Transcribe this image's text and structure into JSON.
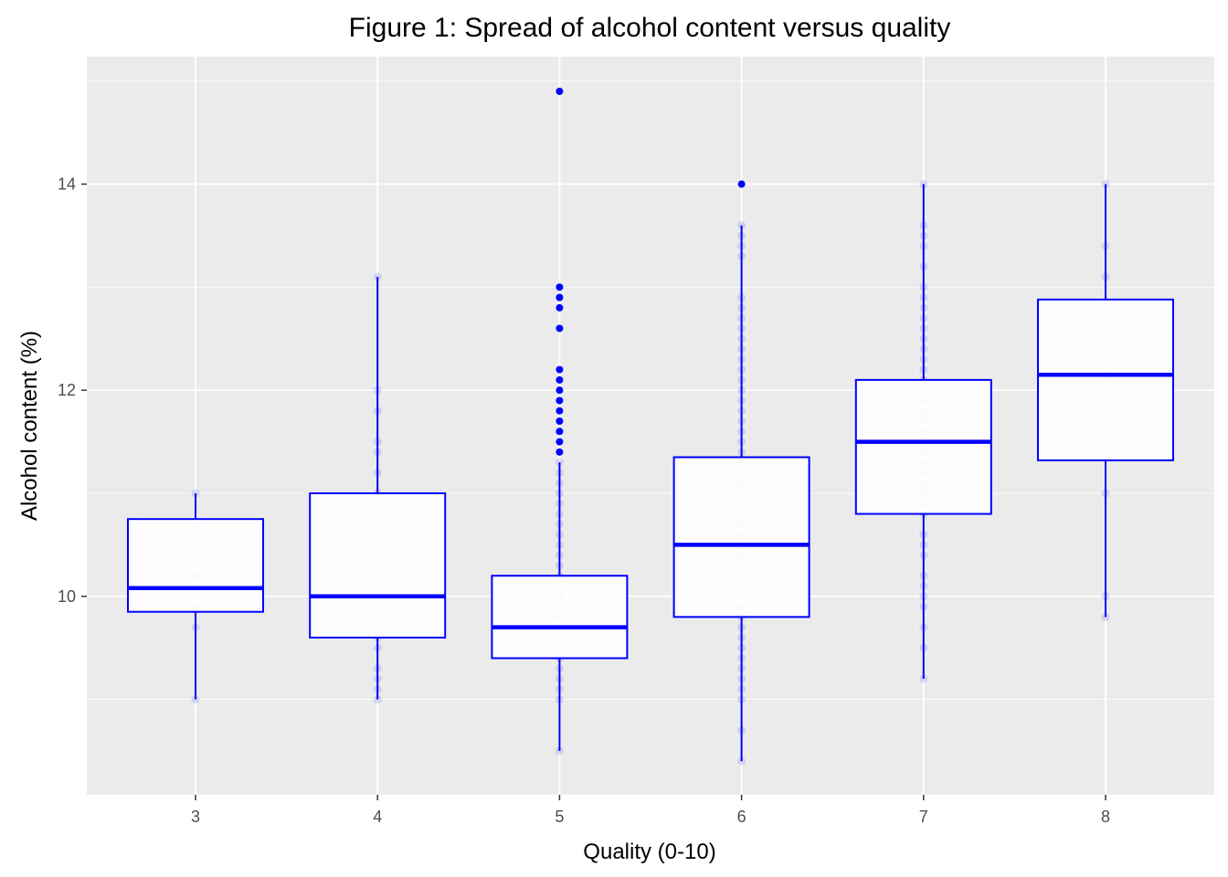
{
  "chart_data": {
    "type": "boxplot",
    "title": "Figure 1: Spread of alcohol content versus quality",
    "xlabel": "Quality (0-10)",
    "ylabel": "Alcohol content (%)",
    "categories": [
      "3",
      "4",
      "5",
      "6",
      "7",
      "8"
    ],
    "y_ticks": [
      10,
      12,
      14
    ],
    "ylim": [
      8.2,
      15.1
    ],
    "grid": true,
    "colors": {
      "panel": "#ebebeb",
      "grid_major": "#ffffff",
      "box": "#0000ff",
      "tick_text": "#4d4d4d"
    },
    "boxes": [
      {
        "quality": "3",
        "whisker_low": 9.0,
        "q1": 9.85,
        "median": 10.08,
        "q3": 10.75,
        "whisker_high": 11.0,
        "outliers": []
      },
      {
        "quality": "4",
        "whisker_low": 9.0,
        "q1": 9.6,
        "median": 10.0,
        "q3": 11.0,
        "whisker_high": 13.1,
        "outliers": []
      },
      {
        "quality": "5",
        "whisker_low": 8.5,
        "q1": 9.4,
        "median": 9.7,
        "q3": 10.2,
        "whisker_high": 11.3,
        "outliers": [
          11.4,
          11.5,
          11.6,
          11.7,
          11.8,
          11.9,
          12.0,
          12.1,
          12.2,
          12.6,
          12.8,
          12.9,
          13.0,
          14.9
        ]
      },
      {
        "quality": "6",
        "whisker_low": 8.4,
        "q1": 9.8,
        "median": 10.5,
        "q3": 11.35,
        "whisker_high": 13.6,
        "outliers": [
          14.0
        ]
      },
      {
        "quality": "7",
        "whisker_low": 9.2,
        "q1": 10.8,
        "median": 11.5,
        "q3": 12.1,
        "whisker_high": 14.0,
        "outliers": []
      },
      {
        "quality": "8",
        "whisker_low": 9.8,
        "q1": 11.32,
        "median": 12.15,
        "q3": 12.88,
        "whisker_high": 14.0,
        "outliers": []
      }
    ],
    "jitter_points": [
      {
        "quality": "3",
        "values": [
          9.0,
          9.7,
          9.9,
          10.0,
          10.2,
          10.7,
          11.0
        ]
      },
      {
        "quality": "4",
        "values": [
          9.0,
          9.1,
          9.2,
          9.3,
          9.5,
          9.6,
          9.7,
          9.8,
          9.9,
          10.0,
          10.1,
          10.4,
          10.5,
          10.9,
          11.0,
          11.2,
          11.4,
          11.5,
          11.8,
          12.0,
          13.1
        ]
      },
      {
        "quality": "5",
        "values": [
          8.5,
          9.0,
          9.1,
          9.2,
          9.3,
          9.4,
          9.5,
          9.6,
          9.7,
          9.8,
          9.9,
          10.0,
          10.1,
          10.2,
          10.3,
          10.4,
          10.5,
          10.6,
          10.7,
          10.8,
          10.9,
          11.0,
          11.1,
          11.2,
          11.3
        ]
      },
      {
        "quality": "6",
        "values": [
          8.4,
          8.7,
          9.0,
          9.1,
          9.2,
          9.3,
          9.4,
          9.5,
          9.6,
          9.7,
          9.8,
          9.9,
          10.0,
          10.1,
          10.2,
          10.3,
          10.4,
          10.5,
          10.6,
          10.7,
          10.8,
          10.9,
          11.0,
          11.1,
          11.2,
          11.3,
          11.4,
          11.5,
          11.6,
          11.7,
          11.8,
          11.9,
          12.0,
          12.1,
          12.2,
          12.3,
          12.4,
          12.5,
          12.6,
          12.7,
          12.8,
          12.9,
          13.3,
          13.4,
          13.5,
          13.6
        ]
      },
      {
        "quality": "7",
        "values": [
          9.2,
          9.5,
          9.7,
          9.9,
          10.0,
          10.1,
          10.2,
          10.4,
          10.5,
          10.6,
          10.8,
          10.9,
          11.0,
          11.1,
          11.2,
          11.3,
          11.4,
          11.6,
          11.7,
          11.8,
          11.9,
          12.0,
          12.1,
          12.2,
          12.3,
          12.4,
          12.5,
          12.6,
          12.7,
          12.8,
          12.9,
          13.0,
          13.2,
          13.4,
          13.5,
          13.6,
          14.0
        ]
      },
      {
        "quality": "8",
        "values": [
          9.8,
          10.0,
          11.0,
          11.4,
          11.7,
          11.8,
          12.5,
          12.6,
          12.7,
          12.8,
          13.1,
          13.4,
          14.0
        ]
      }
    ]
  }
}
